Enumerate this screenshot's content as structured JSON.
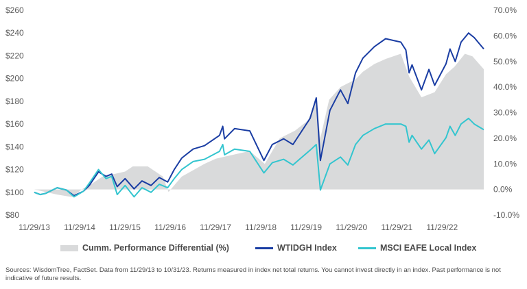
{
  "chart_data": {
    "type": "line",
    "left_axis": {
      "ticks": [
        "$260",
        "$240",
        "$220",
        "$200",
        "$180",
        "$160",
        "$140",
        "$120",
        "$100",
        "$80"
      ],
      "ylim": [
        80,
        260
      ]
    },
    "right_axis": {
      "ticks": [
        "70.0%",
        "60.0%",
        "50.0%",
        "40.0%",
        "30.0%",
        "20.0%",
        "10.0%",
        "0.0%",
        "-10.0%"
      ],
      "ylim": [
        -10,
        70
      ]
    },
    "x_ticks": [
      "11/29/13",
      "11/29/14",
      "11/29/15",
      "11/29/16",
      "11/29/17",
      "11/29/18",
      "11/29/19",
      "11/29/20",
      "11/29/21",
      "11/29/22"
    ],
    "x_range": [
      "2013-11-29",
      "2023-10-31"
    ],
    "series": [
      {
        "name": "Cumm. Performance Differential (%)",
        "kind": "area",
        "axis": "right",
        "color": "#d9dadb",
        "points": [
          [
            "2013-11-29",
            0
          ],
          [
            "2014-03-01",
            -1
          ],
          [
            "2014-06-01",
            -2
          ],
          [
            "2014-10-01",
            -3
          ],
          [
            "2014-12-15",
            0
          ],
          [
            "2015-03-01",
            2
          ],
          [
            "2015-06-01",
            5
          ],
          [
            "2015-09-01",
            6
          ],
          [
            "2015-12-01",
            7
          ],
          [
            "2016-02-01",
            9
          ],
          [
            "2016-06-01",
            9
          ],
          [
            "2016-10-01",
            5
          ],
          [
            "2016-11-15",
            -1
          ],
          [
            "2017-03-01",
            5
          ],
          [
            "2017-09-01",
            10
          ],
          [
            "2017-12-01",
            12
          ],
          [
            "2018-03-01",
            13
          ],
          [
            "2018-06-01",
            14
          ],
          [
            "2018-09-01",
            15
          ],
          [
            "2018-12-31",
            10
          ],
          [
            "2019-05-01",
            20
          ],
          [
            "2019-09-01",
            23
          ],
          [
            "2019-12-15",
            27
          ],
          [
            "2020-02-20",
            36
          ],
          [
            "2020-03-23",
            20
          ],
          [
            "2020-06-01",
            35
          ],
          [
            "2020-09-01",
            40
          ],
          [
            "2020-12-31",
            43
          ],
          [
            "2021-03-01",
            46
          ],
          [
            "2021-06-01",
            49
          ],
          [
            "2021-09-01",
            51
          ],
          [
            "2021-12-31",
            53
          ],
          [
            "2022-03-10",
            44
          ],
          [
            "2022-06-16",
            36
          ],
          [
            "2022-09-30",
            38
          ],
          [
            "2022-12-31",
            45
          ],
          [
            "2023-03-10",
            48
          ],
          [
            "2023-06-01",
            53
          ],
          [
            "2023-08-01",
            52
          ],
          [
            "2023-10-31",
            47
          ]
        ]
      },
      {
        "name": "WTIDGH Index",
        "kind": "line",
        "axis": "left",
        "color": "#1a3da3",
        "points": [
          [
            "2013-11-29",
            100
          ],
          [
            "2014-01-15",
            98
          ],
          [
            "2014-03-01",
            99
          ],
          [
            "2014-06-01",
            104
          ],
          [
            "2014-08-15",
            102
          ],
          [
            "2014-10-15",
            97
          ],
          [
            "2014-12-31",
            101
          ],
          [
            "2015-02-15",
            106
          ],
          [
            "2015-05-01",
            118
          ],
          [
            "2015-06-30",
            114
          ],
          [
            "2015-08-15",
            116
          ],
          [
            "2015-09-28",
            105
          ],
          [
            "2015-12-01",
            112
          ],
          [
            "2016-02-11",
            103
          ],
          [
            "2016-04-15",
            110
          ],
          [
            "2016-06-27",
            106
          ],
          [
            "2016-09-01",
            113
          ],
          [
            "2016-11-08",
            109
          ],
          [
            "2016-12-31",
            120
          ],
          [
            "2017-03-01",
            130
          ],
          [
            "2017-06-01",
            138
          ],
          [
            "2017-09-01",
            141
          ],
          [
            "2017-12-31",
            150
          ],
          [
            "2018-01-26",
            158
          ],
          [
            "2018-02-09",
            147
          ],
          [
            "2018-05-01",
            156
          ],
          [
            "2018-09-01",
            154
          ],
          [
            "2018-12-24",
            128
          ],
          [
            "2019-03-01",
            142
          ],
          [
            "2019-06-01",
            147
          ],
          [
            "2019-08-15",
            142
          ],
          [
            "2019-12-31",
            165
          ],
          [
            "2020-02-19",
            183
          ],
          [
            "2020-03-23",
            128
          ],
          [
            "2020-06-08",
            172
          ],
          [
            "2020-09-01",
            190
          ],
          [
            "2020-10-30",
            178
          ],
          [
            "2020-12-31",
            205
          ],
          [
            "2021-03-01",
            218
          ],
          [
            "2021-06-01",
            228
          ],
          [
            "2021-08-31",
            235
          ],
          [
            "2021-12-31",
            232
          ],
          [
            "2022-02-10",
            225
          ],
          [
            "2022-03-08",
            205
          ],
          [
            "2022-04-01",
            212
          ],
          [
            "2022-06-16",
            190
          ],
          [
            "2022-08-15",
            208
          ],
          [
            "2022-09-30",
            194
          ],
          [
            "2022-12-31",
            213
          ],
          [
            "2023-02-01",
            226
          ],
          [
            "2023-03-15",
            215
          ],
          [
            "2023-05-01",
            232
          ],
          [
            "2023-06-30",
            240
          ],
          [
            "2023-08-15",
            236
          ],
          [
            "2023-10-31",
            226
          ]
        ]
      },
      {
        "name": "MSCI EAFE Local Index",
        "kind": "line",
        "axis": "left",
        "color": "#33c5cf",
        "points": [
          [
            "2013-11-29",
            100
          ],
          [
            "2014-01-15",
            98
          ],
          [
            "2014-03-01",
            99
          ],
          [
            "2014-06-01",
            104
          ],
          [
            "2014-08-15",
            102
          ],
          [
            "2014-10-15",
            96
          ],
          [
            "2014-12-31",
            101
          ],
          [
            "2015-02-15",
            108
          ],
          [
            "2015-05-01",
            120
          ],
          [
            "2015-06-30",
            112
          ],
          [
            "2015-08-15",
            114
          ],
          [
            "2015-09-28",
            98
          ],
          [
            "2015-12-01",
            106
          ],
          [
            "2016-02-11",
            96
          ],
          [
            "2016-04-15",
            104
          ],
          [
            "2016-06-27",
            100
          ],
          [
            "2016-09-01",
            107
          ],
          [
            "2016-11-08",
            104
          ],
          [
            "2016-12-31",
            112
          ],
          [
            "2017-03-01",
            120
          ],
          [
            "2017-06-01",
            127
          ],
          [
            "2017-09-01",
            129
          ],
          [
            "2017-12-31",
            136
          ],
          [
            "2018-01-26",
            142
          ],
          [
            "2018-02-09",
            133
          ],
          [
            "2018-05-01",
            138
          ],
          [
            "2018-09-01",
            136
          ],
          [
            "2018-12-24",
            117
          ],
          [
            "2019-03-01",
            126
          ],
          [
            "2019-06-01",
            129
          ],
          [
            "2019-08-15",
            124
          ],
          [
            "2019-12-31",
            137
          ],
          [
            "2020-02-19",
            142
          ],
          [
            "2020-03-23",
            102
          ],
          [
            "2020-06-08",
            125
          ],
          [
            "2020-09-01",
            131
          ],
          [
            "2020-10-30",
            124
          ],
          [
            "2020-12-31",
            142
          ],
          [
            "2021-03-01",
            150
          ],
          [
            "2021-06-01",
            156
          ],
          [
            "2021-08-31",
            160
          ],
          [
            "2021-12-31",
            160
          ],
          [
            "2022-02-10",
            158
          ],
          [
            "2022-03-08",
            144
          ],
          [
            "2022-04-01",
            150
          ],
          [
            "2022-06-16",
            138
          ],
          [
            "2022-08-15",
            146
          ],
          [
            "2022-09-30",
            134
          ],
          [
            "2022-12-31",
            148
          ],
          [
            "2023-02-01",
            158
          ],
          [
            "2023-03-15",
            150
          ],
          [
            "2023-05-01",
            160
          ],
          [
            "2023-06-30",
            165
          ],
          [
            "2023-08-15",
            160
          ],
          [
            "2023-10-31",
            155
          ]
        ]
      }
    ],
    "grid": false,
    "legend_position": "bottom"
  },
  "footnote": "Sources: WisdomTree, FactSet. Data from 11/29/13 to 10/31/23. Returns measured in index net total returns. You cannot invest directly in an index. Past performance is not indicative of future results."
}
